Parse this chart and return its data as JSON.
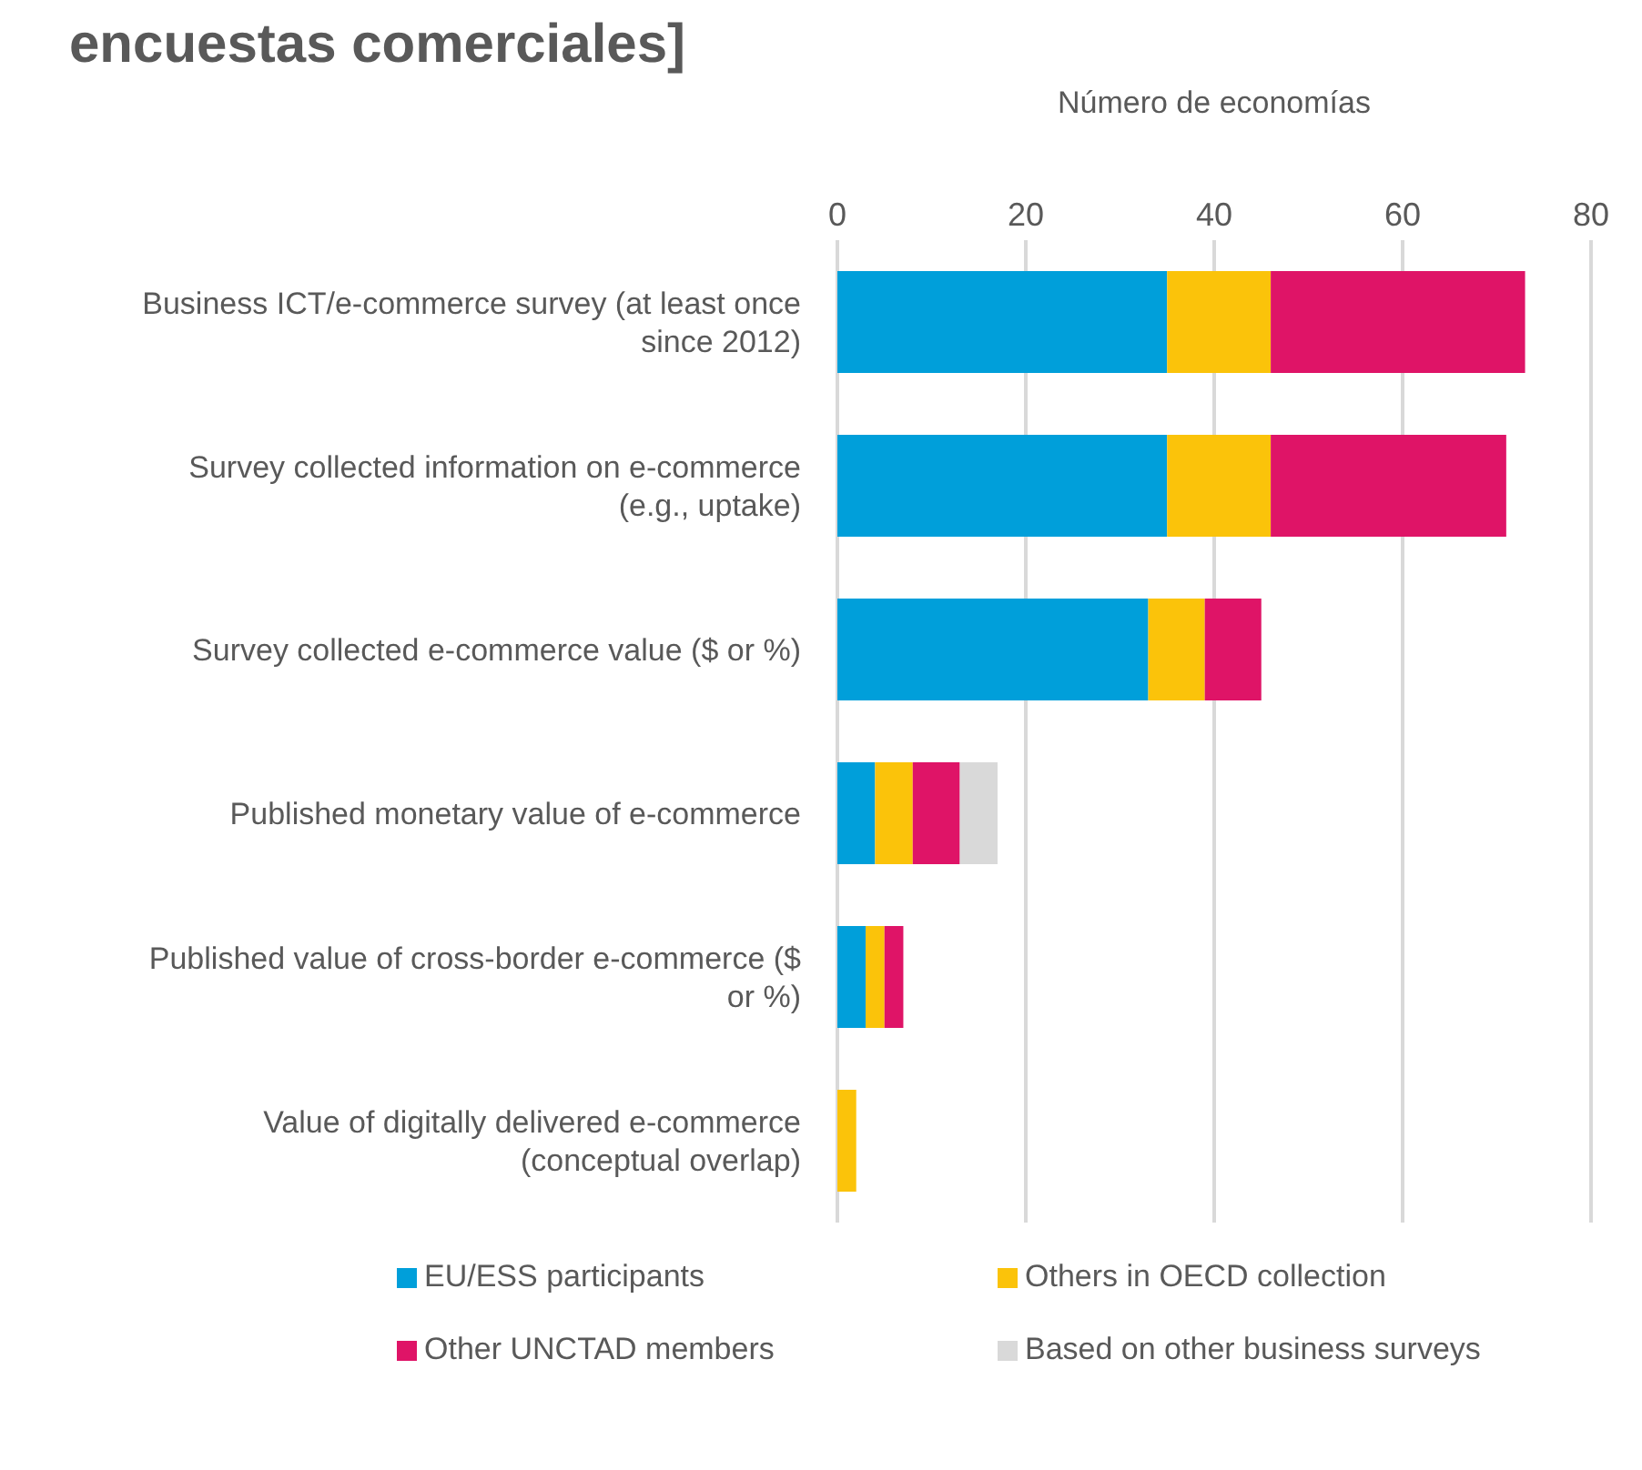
{
  "chart_data": {
    "type": "bar",
    "orientation": "horizontal",
    "stacked": true,
    "title": "encuestas comerciales]",
    "xlabel": "Número de economías",
    "categories": [
      "Business ICT/e-commerce survey (at least once since 2012)",
      "Survey collected information on e-commerce (e.g., uptake)",
      "Survey collected e-commerce value ($ or %)",
      "Published monetary value of e-commerce",
      "Published value of cross-border e-commerce ($ or %)",
      "Value of digitally delivered e-commerce (conceptual overlap)"
    ],
    "series": [
      {
        "name": "EU/ESS participants",
        "color": "#009fda",
        "values": [
          35,
          35,
          33,
          4,
          3,
          0
        ]
      },
      {
        "name": "Others in OECD collection",
        "color": "#fbc30a",
        "values": [
          11,
          11,
          6,
          4,
          2,
          2
        ]
      },
      {
        "name": "Other UNCTAD members",
        "color": "#df1467",
        "values": [
          27,
          25,
          6,
          5,
          2,
          0
        ]
      },
      {
        "name": "Based on other business surveys",
        "color": "#d9d9d9",
        "values": [
          0,
          0,
          0,
          4,
          0,
          0
        ]
      }
    ],
    "xlim": [
      0,
      80
    ],
    "xticks": [
      0,
      20,
      40,
      60,
      80
    ],
    "grid": "x",
    "legend": "bottom"
  }
}
